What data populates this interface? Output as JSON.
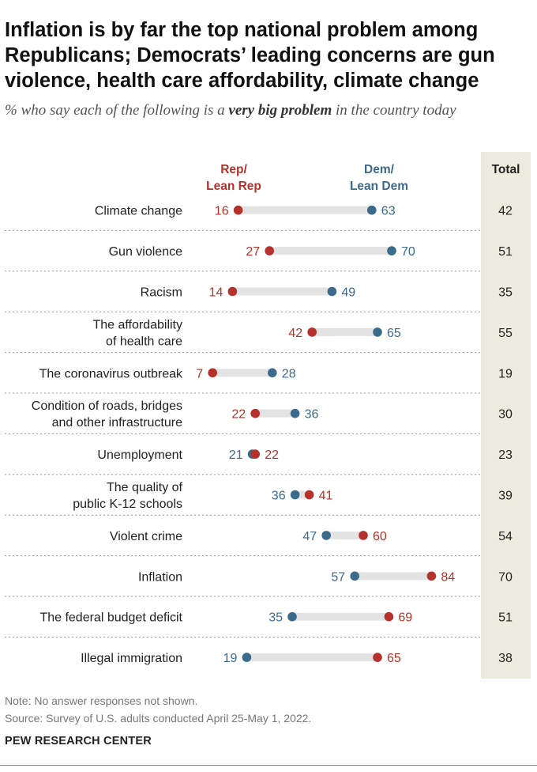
{
  "header": {
    "title": "Inflation is by far the top national problem among Republicans; Democrats’ leading concerns are gun violence, health care affordability, climate change",
    "subtitle_pre": "% who say each of the following is a ",
    "subtitle_bold": "very big problem",
    "subtitle_post": " in the country today"
  },
  "columns": {
    "rep_label": "Rep/\nLean Rep",
    "dem_label": "Dem/\nLean Dem",
    "total_label": "Total"
  },
  "colors": {
    "rep": "#b5312b",
    "dem": "#3b6a8a",
    "bar": "#e3e3e3",
    "total_band": "#ecebdd"
  },
  "chart_data": {
    "type": "dot-range",
    "series": [
      {
        "name": "Rep/Lean Rep",
        "key": "rep"
      },
      {
        "name": "Dem/Lean Dem",
        "key": "dem"
      },
      {
        "name": "Total",
        "key": "total"
      }
    ],
    "items": [
      {
        "label": "Climate change",
        "rep": 16,
        "dem": 63,
        "total": 42
      },
      {
        "label": "Gun violence",
        "rep": 27,
        "dem": 70,
        "total": 51
      },
      {
        "label": "Racism",
        "rep": 14,
        "dem": 49,
        "total": 35
      },
      {
        "label": "The affordability\nof health care",
        "rep": 42,
        "dem": 65,
        "total": 55
      },
      {
        "label": "The coronavirus outbreak",
        "rep": 7,
        "dem": 28,
        "total": 19
      },
      {
        "label": "Condition of roads, bridges\nand other infrastructure",
        "rep": 22,
        "dem": 36,
        "total": 30
      },
      {
        "label": "Unemployment",
        "rep": 22,
        "dem": 21,
        "total": 23
      },
      {
        "label": "The quality of\npublic K-12 schools",
        "rep": 41,
        "dem": 36,
        "total": 39
      },
      {
        "label": "Violent crime",
        "rep": 60,
        "dem": 47,
        "total": 54
      },
      {
        "label": "Inflation",
        "rep": 84,
        "dem": 57,
        "total": 70
      },
      {
        "label": "The federal budget deficit",
        "rep": 69,
        "dem": 35,
        "total": 51
      },
      {
        "label": "Illegal immigration",
        "rep": 65,
        "dem": 19,
        "total": 38
      }
    ]
  },
  "footer": {
    "note": "Note: No answer responses not shown.",
    "source": "Source: Survey of U.S. adults conducted April 25-May 1, 2022.",
    "org": "PEW RESEARCH CENTER"
  }
}
